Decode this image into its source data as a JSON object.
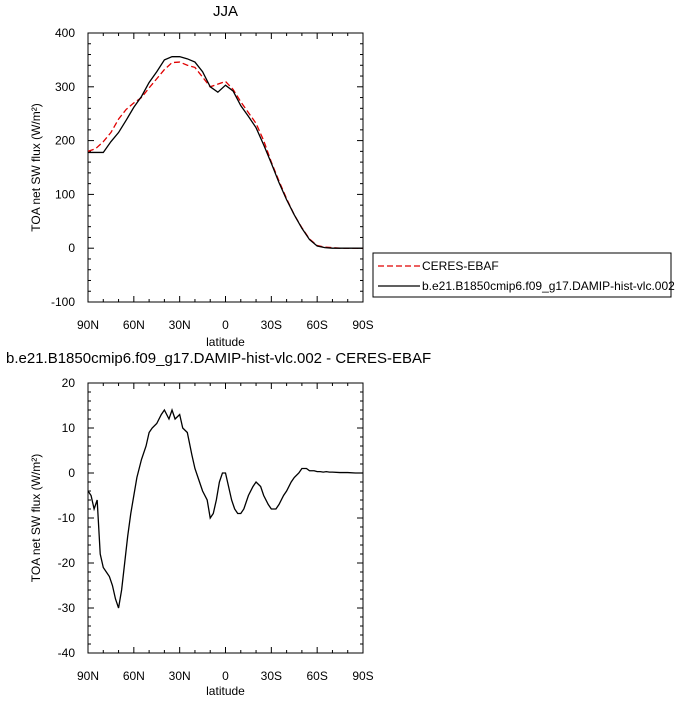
{
  "chart_data": [
    {
      "type": "line",
      "title": "JJA",
      "xlabel": "latitude",
      "ylabel": "TOA net SW flux (W/m²)",
      "ylim": [
        -100,
        400
      ],
      "yticks": [
        -100,
        0,
        100,
        200,
        300,
        400
      ],
      "ytick_labels": [
        "-100",
        "0",
        "100",
        "200",
        "300",
        "400"
      ],
      "xlim": [
        90,
        -90
      ],
      "xticks": [
        90,
        60,
        30,
        0,
        -30,
        -60,
        -90
      ],
      "xtick_labels": [
        "90N",
        "60N",
        "30N",
        "0",
        "30S",
        "60S",
        "90S"
      ],
      "grid": false,
      "legend_position": "right",
      "series": [
        {
          "name": "CERES-EBAF",
          "color": "#e00000",
          "dash": "dashed",
          "x": [
            90,
            85,
            80,
            75,
            70,
            65,
            60,
            55,
            50,
            45,
            40,
            35,
            30,
            25,
            20,
            15,
            10,
            5,
            0,
            -5,
            -10,
            -15,
            -20,
            -25,
            -30,
            -35,
            -40,
            -45,
            -50,
            -55,
            -60,
            -65,
            -70,
            -75,
            -80,
            -85,
            -90
          ],
          "y": [
            180,
            185,
            198,
            215,
            240,
            258,
            270,
            280,
            298,
            315,
            332,
            345,
            346,
            340,
            336,
            318,
            300,
            305,
            310,
            295,
            272,
            252,
            232,
            200,
            160,
            125,
            92,
            62,
            38,
            17,
            5,
            2,
            1,
            0,
            0,
            0,
            0
          ]
        },
        {
          "name": "b.e21.B1850cmip6.f09_g17.DAMIP-hist-vlc.002",
          "color": "#000000",
          "dash": "solid",
          "x": [
            90,
            85,
            80,
            75,
            70,
            65,
            60,
            55,
            50,
            45,
            40,
            35,
            30,
            25,
            20,
            15,
            10,
            5,
            0,
            -5,
            -10,
            -15,
            -20,
            -25,
            -30,
            -35,
            -40,
            -45,
            -50,
            -55,
            -60,
            -65,
            -70,
            -75,
            -80,
            -85,
            -90
          ],
          "y": [
            178,
            178,
            178,
            198,
            215,
            238,
            262,
            282,
            308,
            328,
            350,
            356,
            356,
            352,
            346,
            328,
            300,
            290,
            303,
            292,
            265,
            245,
            224,
            192,
            158,
            122,
            90,
            62,
            37,
            16,
            4,
            1,
            0,
            0,
            0,
            0,
            0
          ]
        }
      ]
    },
    {
      "type": "line",
      "title": "b.e21.B1850cmip6.f09_g17.DAMIP-hist-vlc.002 - CERES-EBAF",
      "xlabel": "latitude",
      "ylabel": "TOA net SW flux (W/m²)",
      "ylim": [
        -40,
        20
      ],
      "yticks": [
        -40,
        -30,
        -20,
        -10,
        0,
        10,
        20
      ],
      "ytick_labels": [
        "-40",
        "-30",
        "-20",
        "-10",
        "0",
        "10",
        "20"
      ],
      "xlim": [
        90,
        -90
      ],
      "xticks": [
        90,
        60,
        30,
        0,
        -30,
        -60,
        -90
      ],
      "xtick_labels": [
        "90N",
        "60N",
        "30N",
        "0",
        "30S",
        "60S",
        "90S"
      ],
      "grid": false,
      "series": [
        {
          "color": "#000000",
          "dash": "solid",
          "x": [
            90,
            88,
            86,
            84,
            82,
            80,
            78,
            76,
            74,
            72,
            70,
            68,
            66,
            64,
            62,
            60,
            58,
            55,
            52,
            50,
            48,
            45,
            42,
            40,
            37,
            35,
            33,
            30,
            28,
            25,
            22,
            20,
            18,
            15,
            12,
            10,
            8,
            6,
            4,
            2,
            0,
            -2,
            -4,
            -6,
            -8,
            -10,
            -12,
            -15,
            -18,
            -20,
            -23,
            -25,
            -28,
            -30,
            -33,
            -35,
            -38,
            -40,
            -43,
            -45,
            -48,
            -50,
            -53,
            -55,
            -58,
            -60,
            -62,
            -64,
            -66,
            -68,
            -70,
            -75,
            -80,
            -85,
            -90
          ],
          "y": [
            -4,
            -5,
            -8,
            -6,
            -18,
            -21,
            -22,
            -23,
            -25,
            -28,
            -30,
            -26,
            -20,
            -14,
            -9,
            -5,
            -1,
            3,
            6,
            9,
            10,
            11,
            13,
            14,
            12,
            14,
            12,
            13,
            10,
            9,
            4,
            1,
            -1,
            -4,
            -6,
            -10,
            -9,
            -6,
            -2,
            0,
            0,
            -3,
            -6,
            -8,
            -9,
            -9,
            -8,
            -5,
            -3,
            -2,
            -3,
            -5,
            -7,
            -8,
            -8,
            -7,
            -5,
            -4,
            -2,
            -1,
            0,
            1,
            1,
            0.5,
            0.5,
            0.3,
            0.3,
            0.2,
            0.3,
            0.2,
            0.2,
            0.1,
            0.1,
            0,
            0
          ]
        }
      ]
    }
  ]
}
